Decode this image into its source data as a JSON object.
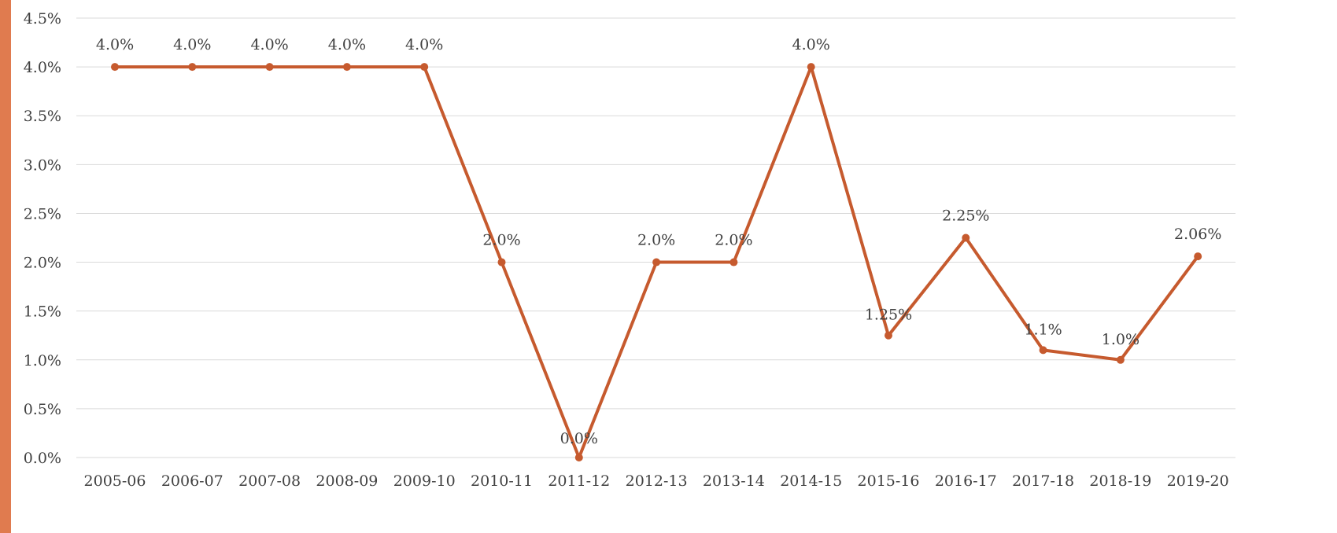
{
  "colors": {
    "series": "#C65A2E",
    "grid": "#D9D9D9",
    "text": "#404040",
    "left_accent": "#E07B4F",
    "background": "#FFFFFF"
  },
  "chart_data": {
    "type": "line",
    "title": "",
    "xlabel": "",
    "ylabel": "",
    "ylim": [
      0,
      4.5
    ],
    "y_ticks": [
      "0.0%",
      "0.5%",
      "1.0%",
      "1.5%",
      "2.0%",
      "2.5%",
      "3.0%",
      "3.5%",
      "4.0%",
      "4.5%"
    ],
    "y_tick_values": [
      0,
      0.5,
      1.0,
      1.5,
      2.0,
      2.5,
      3.0,
      3.5,
      4.0,
      4.5
    ],
    "grid": true,
    "legend": "none",
    "markers": true,
    "categories": [
      "2005-06",
      "2006-07",
      "2007-08",
      "2008-09",
      "2009-10",
      "2010-11",
      "2011-12",
      "2012-13",
      "2013-14",
      "2014-15",
      "2015-16",
      "2016-17",
      "2017-18",
      "2018-19",
      "2019-20"
    ],
    "series": [
      {
        "values": [
          4.0,
          4.0,
          4.0,
          4.0,
          4.0,
          2.0,
          0.0,
          2.0,
          2.0,
          4.0,
          1.25,
          2.25,
          1.1,
          1.0,
          2.06
        ],
        "data_labels": [
          "4.0%",
          "4.0%",
          "4.0%",
          "4.0%",
          "4.0%",
          "2.0%",
          "0.0%",
          "2.0%",
          "2.0%",
          "4.0%",
          "1.25%",
          "2.25%",
          "1.1%",
          "1.0%",
          "2.06%"
        ]
      }
    ]
  }
}
